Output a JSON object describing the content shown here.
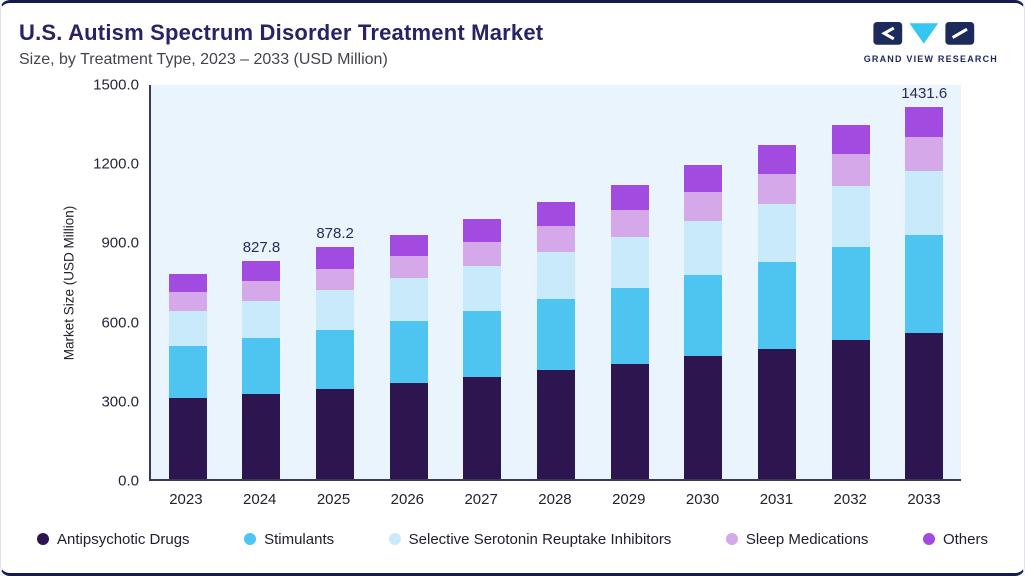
{
  "page": {
    "title": "U.S. Autism Spectrum Disorder Treatment Market",
    "subtitle": "Size, by Treatment Type, 2023 – 2033 (USD Million)",
    "logo_text": "GRAND VIEW RESEARCH"
  },
  "colors": {
    "frame_border": "#141B4D",
    "title_navy": "#272366",
    "plot_background": "#E9F4FC",
    "axis_line": "#3A3B52",
    "logo_navy": "#1D2A5C",
    "logo_cyan": "#35C7F1"
  },
  "chart_data": {
    "type": "bar",
    "stacked": true,
    "title": "U.S. Autism Spectrum Disorder Treatment Market Size, by Treatment Type, 2023 – 2033 (USD Million)",
    "xlabel": "",
    "ylabel": "Market Size (USD Million)",
    "ylim": [
      0,
      1500
    ],
    "yticks": [
      "0.0",
      "300.0",
      "600.0",
      "900.0",
      "1200.0",
      "1500.0"
    ],
    "grid": false,
    "legend_position": "bottom",
    "plot_bg": "#E9F4FC",
    "categories": [
      "2023",
      "2024",
      "2025",
      "2026",
      "2027",
      "2028",
      "2029",
      "2030",
      "2031",
      "2032",
      "2033"
    ],
    "series": [
      {
        "name": "Antipsychotic Drugs",
        "color": "#2D1650",
        "values": [
          305,
          322,
          340,
          362,
          385,
          412,
          437,
          465,
          494,
          527,
          560
        ]
      },
      {
        "name": "Stimulants",
        "color": "#4EC4F0",
        "values": [
          197,
          212,
          226,
          238,
          252,
          268,
          288,
          308,
          328,
          350,
          378
        ]
      },
      {
        "name": "Selective Serotonin Reuptake Inhibitors",
        "color": "#C9EAFB",
        "values": [
          134,
          142,
          150,
          160,
          170,
          181,
          192,
          205,
          218,
          232,
          248
        ]
      },
      {
        "name": "Sleep Medications",
        "color": "#D5A8EA",
        "values": [
          72,
          76,
          81,
          85,
          90,
          96,
          102,
          108,
          115,
          122,
          130
        ]
      },
      {
        "name": "Others",
        "color": "#A14BE0",
        "values": [
          69,
          75.8,
          81.2,
          80,
          88,
          91,
          96,
          102,
          109,
          109,
          115.6
        ]
      }
    ],
    "total_labels": [
      "",
      "827.8",
      "878.2",
      "",
      "",
      "",
      "",
      "",
      "",
      "",
      "1431.6"
    ]
  }
}
